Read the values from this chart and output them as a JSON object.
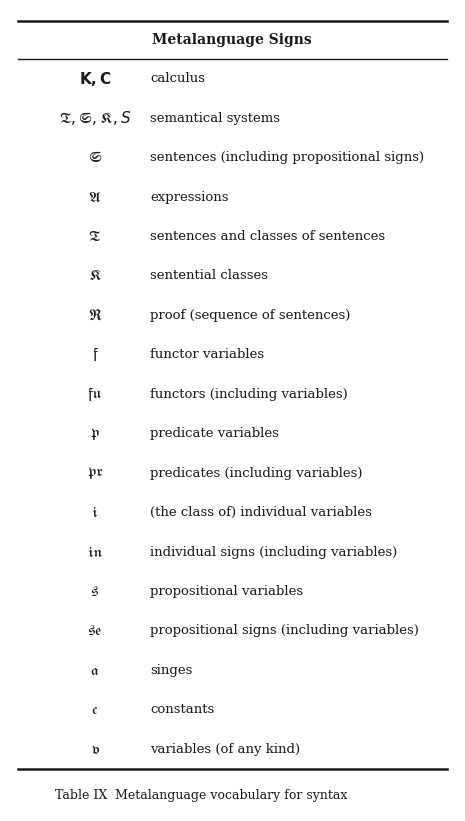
{
  "title": "Metalanguage Signs",
  "caption_label": "Table IX",
  "caption_text": "Metalanguage vocabulary for syntax",
  "bg_color": "#ffffff",
  "text_color": "#1a1a1a",
  "line_color": "#1a1a1a",
  "font_size": 9.5,
  "header_font_size": 10,
  "caption_font_size": 9,
  "rows": [
    {
      "latex": "$\\mathit{\\mathbf{K, C}}$",
      "desc": "calculus"
    },
    {
      "latex": "$\\mathfrak{T}, \\mathfrak{S}, \\mathfrak{K}, S$",
      "desc": "semantical systems"
    },
    {
      "latex": "$\\mathfrak{S}$",
      "desc": "sentences (including propositional signs)"
    },
    {
      "latex": "$\\mathfrak{A}$",
      "desc": "expressions"
    },
    {
      "latex": "$\\mathfrak{T}$",
      "desc": "sentences and classes of sentences"
    },
    {
      "latex": "$\\mathfrak{K}$",
      "desc": "sentential classes"
    },
    {
      "latex": "$\\mathfrak{R}$",
      "desc": "proof (sequence of sentences)"
    },
    {
      "latex": "$\\mathfrak{f}$",
      "desc": "functor variables"
    },
    {
      "latex": "$\\mathfrak{fu}$",
      "desc": "functors (including variables)"
    },
    {
      "latex": "$\\mathfrak{p}$",
      "desc": "predicate variables"
    },
    {
      "latex": "$\\mathfrak{pr}$",
      "desc": "predicates (including variables)"
    },
    {
      "latex": "$\\mathfrak{i}$",
      "desc": "(the class of) individual variables"
    },
    {
      "latex": "$\\mathfrak{in}$",
      "desc": "individual signs (including variables)"
    },
    {
      "latex": "$\\mathfrak{s}$",
      "desc": "propositional variables"
    },
    {
      "latex": "$\\mathfrak{se}$",
      "desc": "propositional signs (including variables)"
    },
    {
      "latex": "$\\mathfrak{a}$",
      "desc": "singes"
    },
    {
      "latex": "$\\mathfrak{c}$",
      "desc": "constants"
    },
    {
      "latex": "$\\mathfrak{v}$",
      "desc": "variables (of any kind)"
    }
  ]
}
